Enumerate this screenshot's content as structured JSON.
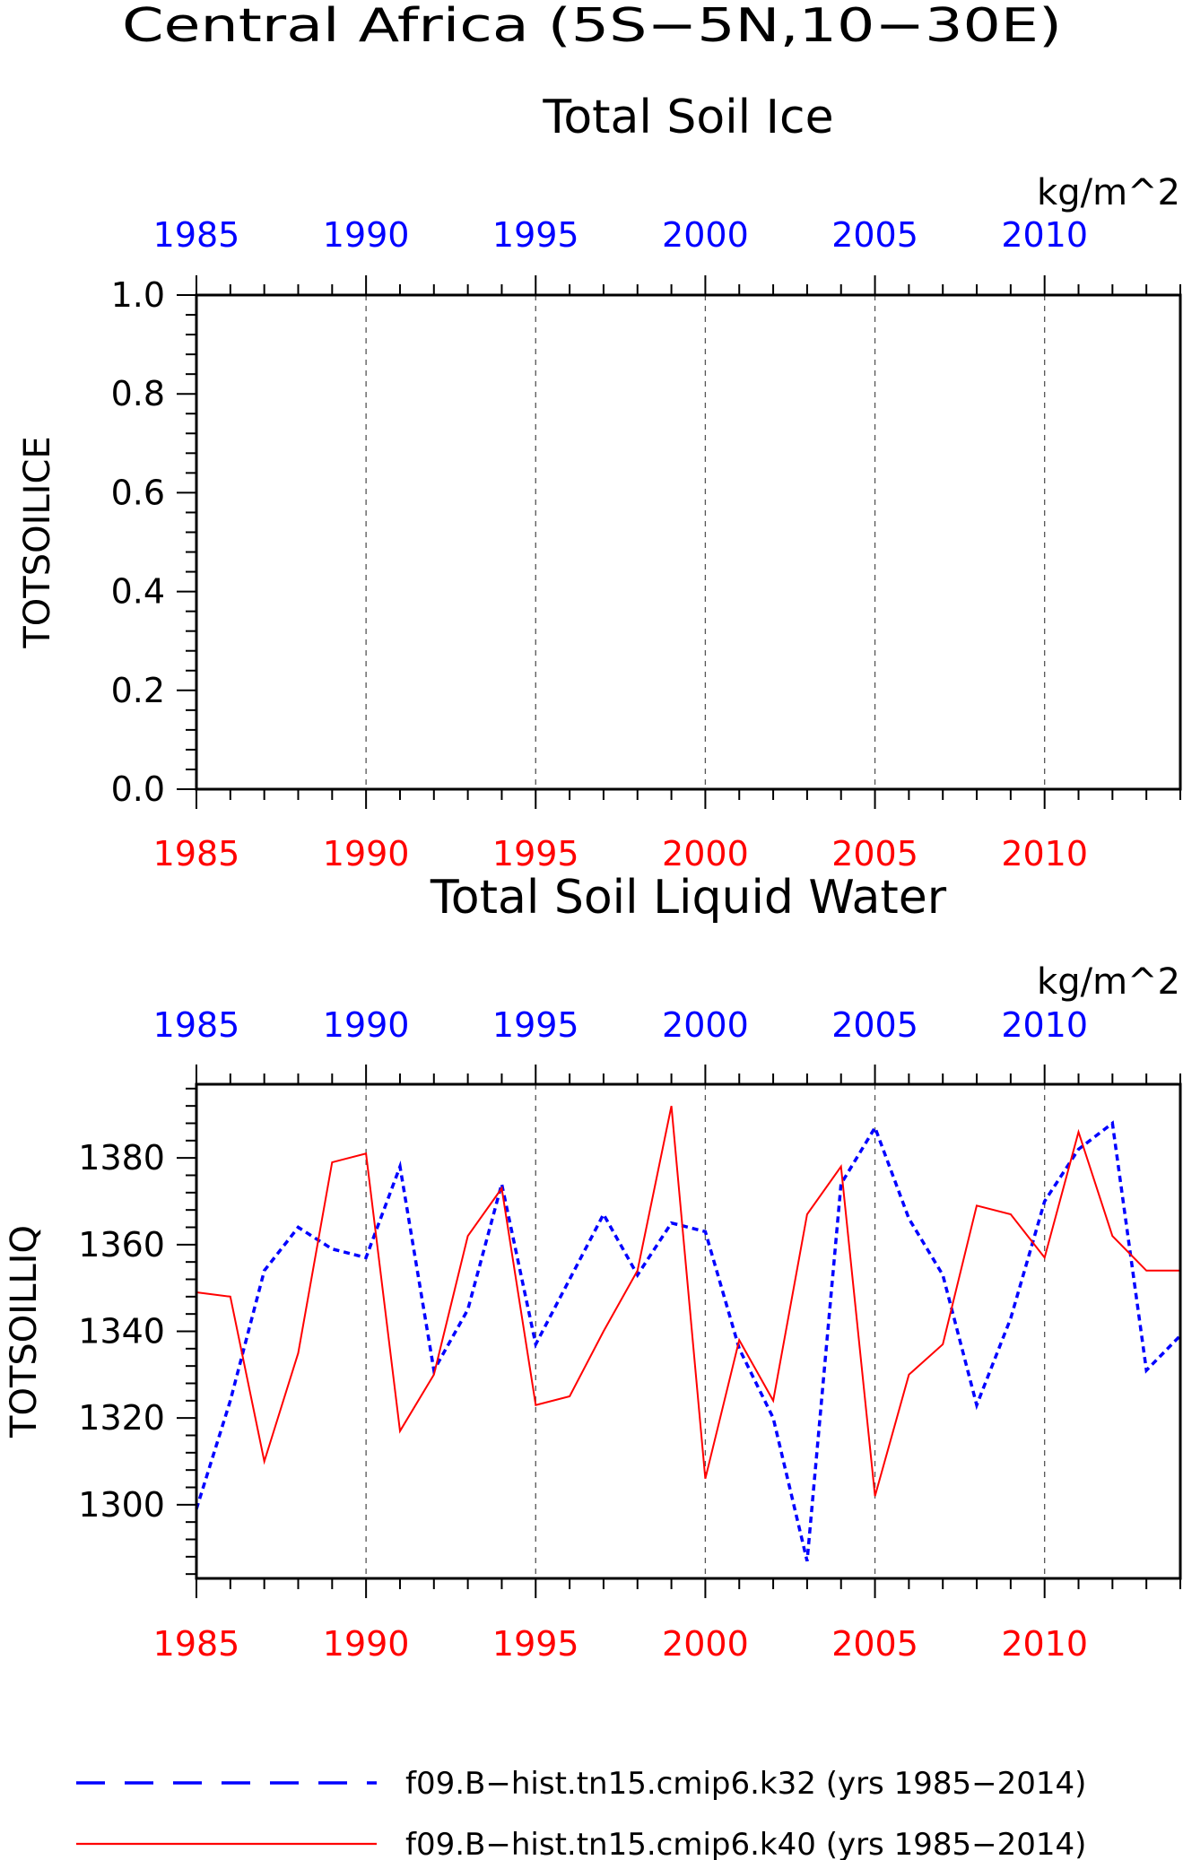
{
  "figure": {
    "title": "Central Africa (5S−5N,10−30E)"
  },
  "colors": {
    "axis": "#000000",
    "top_axis_text": "#0000ff",
    "bottom_axis_text": "#ff0000",
    "series_k32": "#0000ff",
    "series_k40": "#ff0000",
    "vgrid": "#555555"
  },
  "legend": {
    "placement": "bottom",
    "items": [
      {
        "label": "f09.B−hist.tn15.cmip6.k32 (yrs 1985−2014)",
        "color": "#0000ff",
        "style": "dashed"
      },
      {
        "label": "f09.B−hist.tn15.cmip6.k40 (yrs 1985−2014)",
        "color": "#ff0000",
        "style": "solid"
      }
    ]
  },
  "chart_data": [
    {
      "type": "line",
      "title": "Total Soil Ice",
      "units": "kg/m^2",
      "ylabel": "TOTSOILICE",
      "xlim": [
        1985,
        2014
      ],
      "ylim": [
        0,
        1
      ],
      "x_ticks": [
        "1985",
        "1990",
        "1995",
        "2000",
        "2005",
        "2010"
      ],
      "y_ticks": [
        "0.0",
        "0.2",
        "0.4",
        "0.6",
        "0.8",
        "1.0"
      ],
      "y_tick_values": [
        0,
        0.2,
        0.4,
        0.6,
        0.8,
        1.0
      ],
      "vertical_gridlines_at": [
        1990,
        1995,
        2000,
        2005,
        2010
      ],
      "series": []
    },
    {
      "type": "line",
      "title": "Total Soil Liquid Water",
      "units": "kg/m^2",
      "ylabel": "TOTSOILLIQ",
      "xlim": [
        1985,
        2014
      ],
      "ylim": [
        1283,
        1397
      ],
      "x_ticks": [
        "1985",
        "1990",
        "1995",
        "2000",
        "2005",
        "2010"
      ],
      "y_ticks": [
        "1300",
        "1320",
        "1340",
        "1360",
        "1380"
      ],
      "y_tick_values": [
        1300,
        1320,
        1340,
        1360,
        1380
      ],
      "vertical_gridlines_at": [
        1990,
        1995,
        2000,
        2005,
        2010
      ],
      "x": [
        1985,
        1986,
        1987,
        1988,
        1989,
        1990,
        1991,
        1992,
        1993,
        1994,
        1995,
        1996,
        1997,
        1998,
        1999,
        2000,
        2001,
        2002,
        2003,
        2004,
        2005,
        2006,
        2007,
        2008,
        2009,
        2010,
        2011,
        2012,
        2013,
        2014
      ],
      "series": [
        {
          "color": "#0000ff",
          "style": "dashed",
          "values": [
            1299,
            1324,
            1354,
            1364,
            1359,
            1357,
            1378,
            1331,
            1345,
            1374,
            1337,
            1352,
            1367,
            1353,
            1365,
            1363,
            1336,
            1320,
            1287,
            1374,
            1387,
            1366,
            1353,
            1323,
            1343,
            1370,
            1382,
            1388,
            1331,
            1339
          ]
        },
        {
          "color": "#ff0000",
          "style": "solid",
          "values": [
            1349,
            1348,
            1310,
            1335,
            1379,
            1381,
            1317,
            1330,
            1362,
            1373,
            1323,
            1325,
            1340,
            1354,
            1392,
            1306,
            1338,
            1324,
            1367,
            1378,
            1302,
            1330,
            1337,
            1369,
            1367,
            1357,
            1386,
            1362,
            1354,
            1354
          ]
        }
      ]
    }
  ]
}
